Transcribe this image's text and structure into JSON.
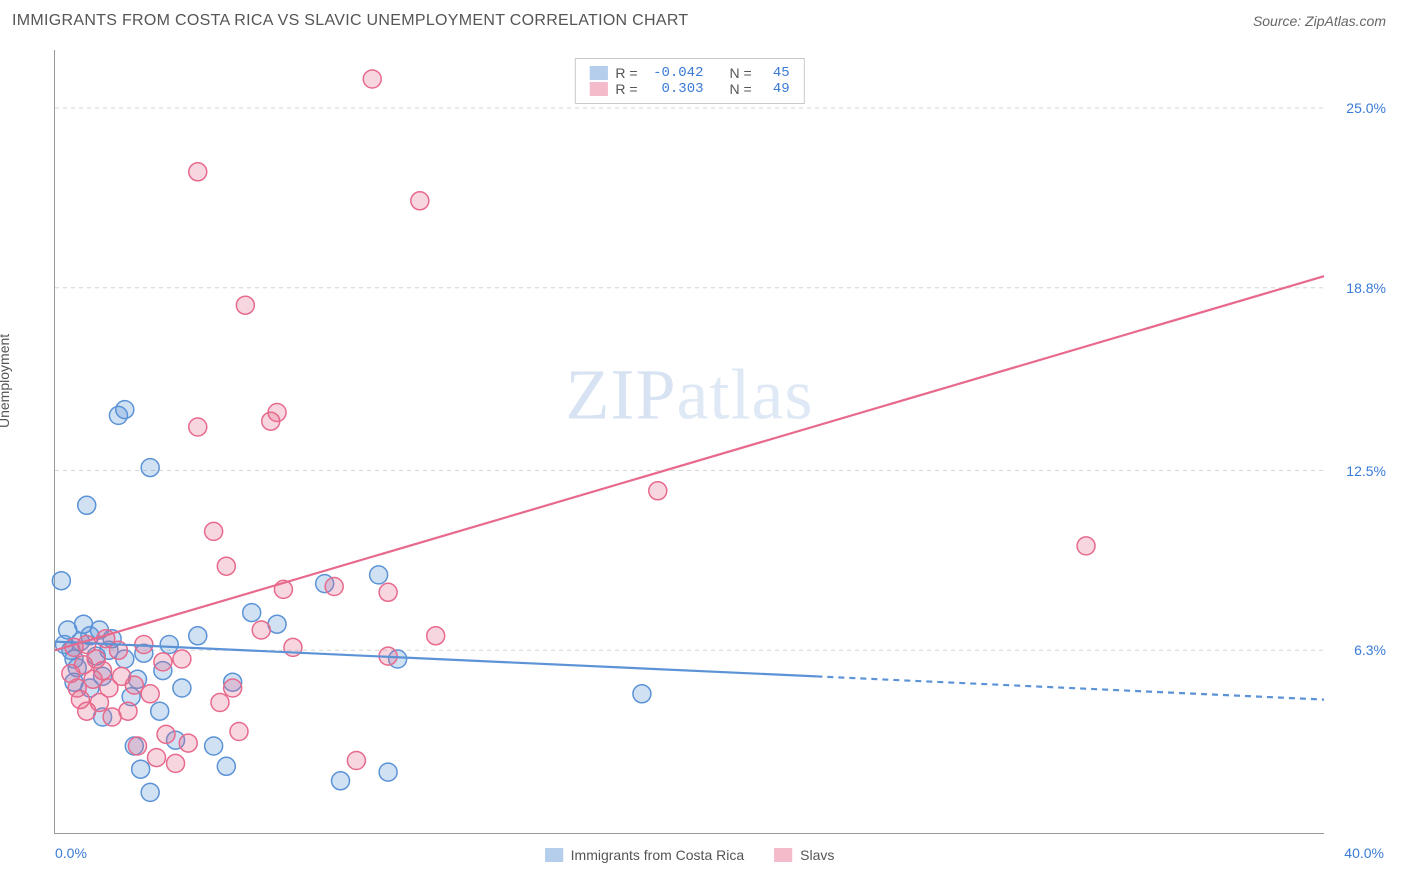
{
  "title": "IMMIGRANTS FROM COSTA RICA VS SLAVIC UNEMPLOYMENT CORRELATION CHART",
  "source_label": "Source: ZipAtlas.com",
  "ylabel": "Unemployment",
  "watermark_a": "ZIP",
  "watermark_b": "atlas",
  "chart": {
    "type": "scatter",
    "background_color": "#ffffff",
    "grid_color": "#d5d5d5",
    "axis_color": "#999999",
    "xlim": [
      0,
      40
    ],
    "ylim": [
      0,
      27
    ],
    "x_ticks": [
      {
        "v": 0,
        "label": "0.0%"
      },
      {
        "v": 40,
        "label": "40.0%"
      }
    ],
    "y_ticks": [
      {
        "v": 6.3,
        "label": "6.3%"
      },
      {
        "v": 12.5,
        "label": "12.5%"
      },
      {
        "v": 18.8,
        "label": "18.8%"
      },
      {
        "v": 25.0,
        "label": "25.0%"
      }
    ],
    "tick_color": "#3a7bd5",
    "tick_fontsize": 14,
    "marker_radius": 9,
    "marker_stroke_width": 1.5,
    "marker_fill_opacity": 0.28,
    "trend_line_width": 2.2,
    "trend_dash_extrapolate": "6,5",
    "series": [
      {
        "name": "Immigrants from Costa Rica",
        "color": "#5b93d6",
        "fill": "#5b93d6",
        "R": "-0.042",
        "N": "45",
        "trend": {
          "x0": 0,
          "y0": 6.6,
          "x1": 40,
          "y1": 4.6,
          "solid_until_x": 24
        },
        "points": [
          [
            0.2,
            8.7
          ],
          [
            0.3,
            6.5
          ],
          [
            0.4,
            7.0
          ],
          [
            0.5,
            6.3
          ],
          [
            0.6,
            6.0
          ],
          [
            0.6,
            5.2
          ],
          [
            0.7,
            5.7
          ],
          [
            0.8,
            6.6
          ],
          [
            0.9,
            7.2
          ],
          [
            1.0,
            11.3
          ],
          [
            1.1,
            6.8
          ],
          [
            1.1,
            5.0
          ],
          [
            1.3,
            6.1
          ],
          [
            1.4,
            7.0
          ],
          [
            1.5,
            5.4
          ],
          [
            1.5,
            4.0
          ],
          [
            1.7,
            6.3
          ],
          [
            1.8,
            6.7
          ],
          [
            2.0,
            14.4
          ],
          [
            2.2,
            6.0
          ],
          [
            2.2,
            14.6
          ],
          [
            2.4,
            4.7
          ],
          [
            2.5,
            3.0
          ],
          [
            2.6,
            5.3
          ],
          [
            2.7,
            2.2
          ],
          [
            2.8,
            6.2
          ],
          [
            3.0,
            1.4
          ],
          [
            3.0,
            12.6
          ],
          [
            3.3,
            4.2
          ],
          [
            3.4,
            5.6
          ],
          [
            3.6,
            6.5
          ],
          [
            3.8,
            3.2
          ],
          [
            4.0,
            5.0
          ],
          [
            4.5,
            6.8
          ],
          [
            5.0,
            3.0
          ],
          [
            5.4,
            2.3
          ],
          [
            5.6,
            5.2
          ],
          [
            6.2,
            7.6
          ],
          [
            7.0,
            7.2
          ],
          [
            8.5,
            8.6
          ],
          [
            9.0,
            1.8
          ],
          [
            10.2,
            8.9
          ],
          [
            10.5,
            2.1
          ],
          [
            10.8,
            6.0
          ],
          [
            18.5,
            4.8
          ]
        ]
      },
      {
        "name": "Slavs",
        "color": "#e76a8d",
        "fill": "#e76a8d",
        "R": "0.303",
        "N": "49",
        "trend": {
          "x0": 0,
          "y0": 6.3,
          "x1": 40,
          "y1": 19.2,
          "solid_until_x": 40
        },
        "points": [
          [
            0.5,
            5.5
          ],
          [
            0.6,
            6.4
          ],
          [
            0.7,
            5.0
          ],
          [
            0.8,
            4.6
          ],
          [
            0.9,
            5.8
          ],
          [
            1.0,
            6.5
          ],
          [
            1.0,
            4.2
          ],
          [
            1.2,
            5.3
          ],
          [
            1.3,
            6.0
          ],
          [
            1.4,
            4.5
          ],
          [
            1.5,
            5.6
          ],
          [
            1.6,
            6.7
          ],
          [
            1.7,
            5.0
          ],
          [
            1.8,
            4.0
          ],
          [
            2.0,
            6.3
          ],
          [
            2.1,
            5.4
          ],
          [
            2.3,
            4.2
          ],
          [
            2.5,
            5.1
          ],
          [
            2.6,
            3.0
          ],
          [
            2.8,
            6.5
          ],
          [
            3.0,
            4.8
          ],
          [
            3.2,
            2.6
          ],
          [
            3.4,
            5.9
          ],
          [
            3.5,
            3.4
          ],
          [
            3.8,
            2.4
          ],
          [
            4.0,
            6.0
          ],
          [
            4.2,
            3.1
          ],
          [
            4.5,
            14.0
          ],
          [
            4.5,
            22.8
          ],
          [
            5.0,
            10.4
          ],
          [
            5.2,
            4.5
          ],
          [
            5.4,
            9.2
          ],
          [
            5.6,
            5.0
          ],
          [
            5.8,
            3.5
          ],
          [
            6.0,
            18.2
          ],
          [
            6.5,
            7.0
          ],
          [
            6.8,
            14.2
          ],
          [
            7.0,
            14.5
          ],
          [
            7.2,
            8.4
          ],
          [
            7.5,
            6.4
          ],
          [
            8.8,
            8.5
          ],
          [
            9.5,
            2.5
          ],
          [
            10.0,
            26.0
          ],
          [
            10.5,
            6.1
          ],
          [
            10.5,
            8.3
          ],
          [
            11.5,
            21.8
          ],
          [
            12.0,
            6.8
          ],
          [
            19.0,
            11.8
          ],
          [
            32.5,
            9.9
          ]
        ]
      }
    ],
    "legend_top": {
      "border_color": "#c9c9c9",
      "label_R": "R =",
      "label_N": "N ="
    }
  }
}
